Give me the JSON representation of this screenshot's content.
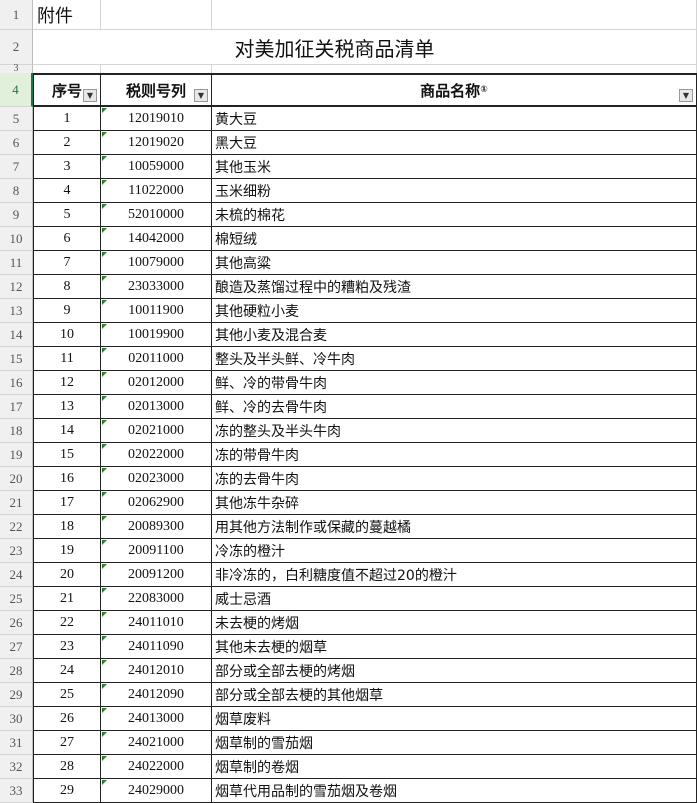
{
  "sheet": {
    "a1": "附件",
    "title": "对美加征关税商品清单",
    "headers": {
      "seq": "序号",
      "code": "税则号列",
      "name": "商品名称",
      "name_note": "①"
    },
    "filter_icon": "dropdown-arrow-icon",
    "row_labels": [
      "1",
      "2",
      "3",
      "4"
    ],
    "rows": [
      {
        "r": "5",
        "seq": "1",
        "code": "12019010",
        "name": "黄大豆"
      },
      {
        "r": "6",
        "seq": "2",
        "code": "12019020",
        "name": "黑大豆"
      },
      {
        "r": "7",
        "seq": "3",
        "code": "10059000",
        "name": "其他玉米"
      },
      {
        "r": "8",
        "seq": "4",
        "code": "11022000",
        "name": "玉米细粉"
      },
      {
        "r": "9",
        "seq": "5",
        "code": "52010000",
        "name": "未梳的棉花"
      },
      {
        "r": "10",
        "seq": "6",
        "code": "14042000",
        "name": "棉短绒"
      },
      {
        "r": "11",
        "seq": "7",
        "code": "10079000",
        "name": "其他高粱"
      },
      {
        "r": "12",
        "seq": "8",
        "code": "23033000",
        "name": "酿造及蒸馏过程中的糟粕及残渣"
      },
      {
        "r": "13",
        "seq": "9",
        "code": "10011900",
        "name": "其他硬粒小麦"
      },
      {
        "r": "14",
        "seq": "10",
        "code": "10019900",
        "name": "其他小麦及混合麦"
      },
      {
        "r": "15",
        "seq": "11",
        "code": "02011000",
        "name": "整头及半头鲜、冷牛肉"
      },
      {
        "r": "16",
        "seq": "12",
        "code": "02012000",
        "name": "鲜、冷的带骨牛肉"
      },
      {
        "r": "17",
        "seq": "13",
        "code": "02013000",
        "name": "鲜、冷的去骨牛肉"
      },
      {
        "r": "18",
        "seq": "14",
        "code": "02021000",
        "name": "冻的整头及半头牛肉"
      },
      {
        "r": "19",
        "seq": "15",
        "code": "02022000",
        "name": "冻的带骨牛肉"
      },
      {
        "r": "20",
        "seq": "16",
        "code": "02023000",
        "name": "冻的去骨牛肉"
      },
      {
        "r": "21",
        "seq": "17",
        "code": "02062900",
        "name": "其他冻牛杂碎"
      },
      {
        "r": "22",
        "seq": "18",
        "code": "20089300",
        "name": "用其他方法制作或保藏的蔓越橘"
      },
      {
        "r": "23",
        "seq": "19",
        "code": "20091100",
        "name": "冷冻的橙汁"
      },
      {
        "r": "24",
        "seq": "20",
        "code": "20091200",
        "name": "非冷冻的，白利糖度值不超过20的橙汁"
      },
      {
        "r": "25",
        "seq": "21",
        "code": "22083000",
        "name": "威士忌酒"
      },
      {
        "r": "26",
        "seq": "22",
        "code": "24011010",
        "name": "未去梗的烤烟"
      },
      {
        "r": "27",
        "seq": "23",
        "code": "24011090",
        "name": "其他未去梗的烟草"
      },
      {
        "r": "28",
        "seq": "24",
        "code": "24012010",
        "name": "部分或全部去梗的烤烟"
      },
      {
        "r": "29",
        "seq": "25",
        "code": "24012090",
        "name": "部分或全部去梗的其他烟草"
      },
      {
        "r": "30",
        "seq": "26",
        "code": "24013000",
        "name": "烟草废料"
      },
      {
        "r": "31",
        "seq": "27",
        "code": "24021000",
        "name": "烟草制的雪茄烟"
      },
      {
        "r": "32",
        "seq": "28",
        "code": "24022000",
        "name": "烟草制的卷烟"
      },
      {
        "r": "33",
        "seq": "29",
        "code": "24029000",
        "name": "烟草代用品制的雪茄烟及卷烟"
      }
    ]
  }
}
